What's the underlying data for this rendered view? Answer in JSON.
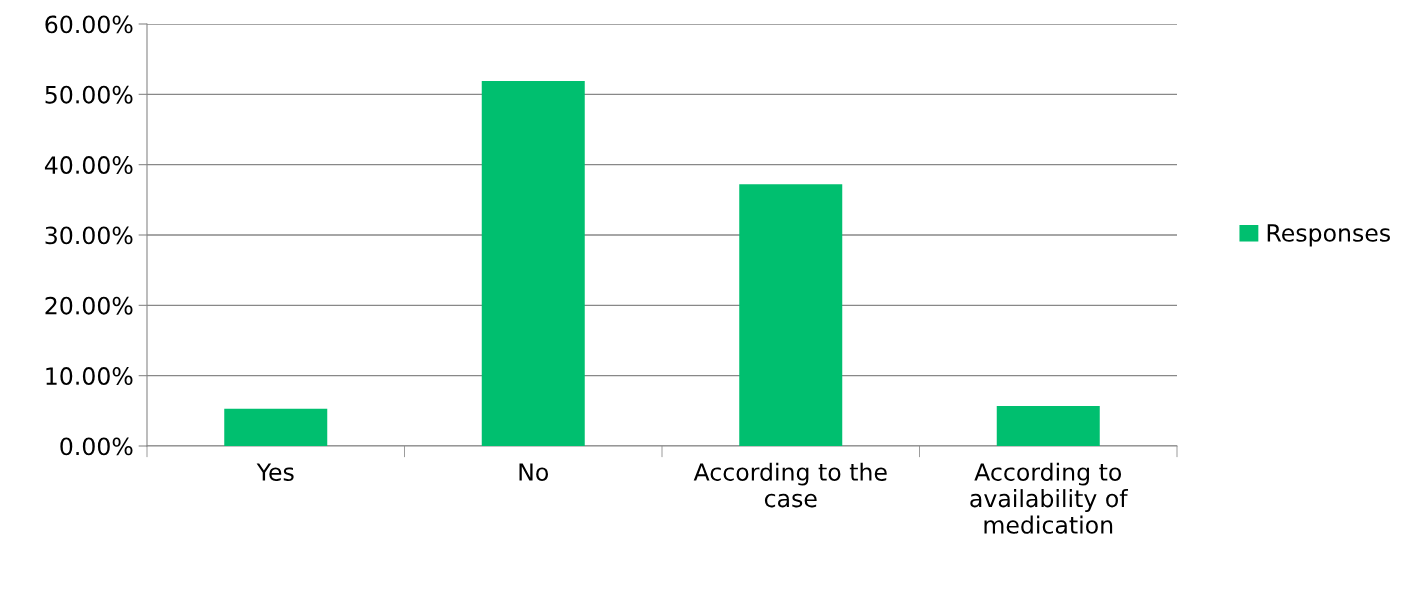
{
  "chart_data": {
    "type": "bar",
    "categories": [
      "Yes",
      "No",
      "According to the case",
      "According to availability of medication"
    ],
    "series": [
      {
        "name": "Responses",
        "color": "#00bf6f",
        "values": [
          5.3,
          51.9,
          37.2,
          5.7
        ]
      }
    ],
    "ylim": [
      0,
      60
    ],
    "yticks": [
      {
        "value": 0,
        "label": "0.00%"
      },
      {
        "value": 10,
        "label": "10.00%"
      },
      {
        "value": 20,
        "label": "20.00%"
      },
      {
        "value": 30,
        "label": "30.00%"
      },
      {
        "value": 40,
        "label": "40.00%"
      },
      {
        "value": 50,
        "label": "50.00%"
      },
      {
        "value": 60,
        "label": "60.00%"
      }
    ],
    "grid": "y",
    "legend": "right"
  }
}
